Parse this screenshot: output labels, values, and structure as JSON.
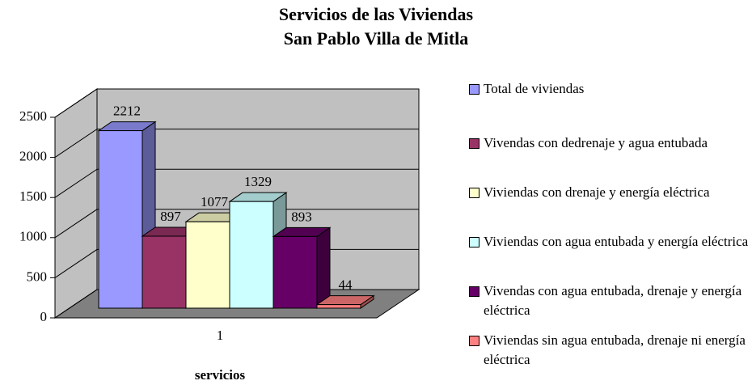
{
  "chart_data": {
    "type": "bar3d",
    "title": "Servicios de las Viviendas",
    "subtitle": "San Pablo Villa de Mitla",
    "x_label": "servicios",
    "categories": [
      "1"
    ],
    "series": [
      {
        "name": "Total de viviendas",
        "color": "#9999ff",
        "values": [
          2212
        ]
      },
      {
        "name": "Vivendas con dedrenaje y agua entubada",
        "color": "#993366",
        "values": [
          897
        ]
      },
      {
        "name": "Viviendas con drenaje y energía eléctrica",
        "color": "#ffffcc",
        "values": [
          1077
        ]
      },
      {
        "name": "Viviendas con agua entubada y energía eléctrica",
        "color": "#ccffff",
        "values": [
          1329
        ]
      },
      {
        "name": "Vivendas con agua entubada, drenaje y energía eléctrica",
        "color": "#660066",
        "values": [
          893
        ]
      },
      {
        "name": "Viviendas sin agua entubada, drenaje ni energía eléctrica",
        "color": "#ff8080",
        "values": [
          44
        ]
      }
    ],
    "ylim": [
      0,
      2500
    ],
    "yticks": [
      0,
      500,
      1000,
      1500,
      2000,
      2500
    ],
    "grid": true,
    "legend": "right"
  }
}
